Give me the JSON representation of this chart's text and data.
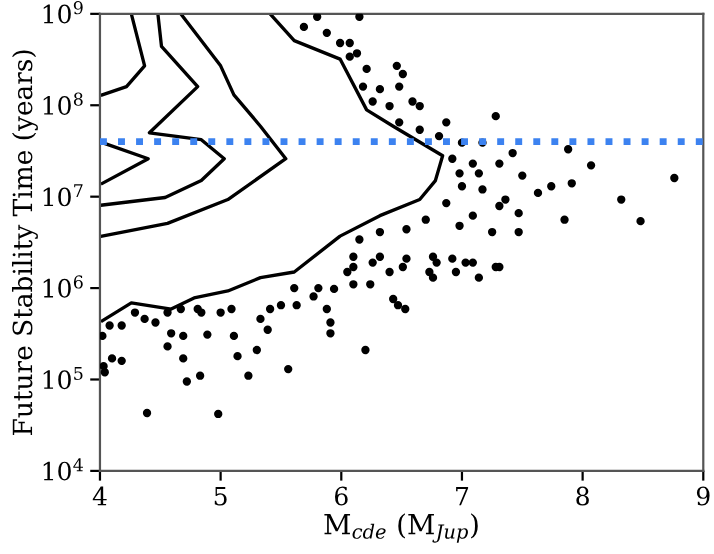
{
  "chart_data": {
    "type": "scatter",
    "xlabel": "M$_{cde}$ (M$_{Jup}$)",
    "ylabel": "Future Stability Time (years)",
    "log": "y",
    "grid": false,
    "xlim": [
      4,
      9
    ],
    "xticks": [
      4,
      5,
      6,
      7,
      8,
      9
    ],
    "ylim": [
      10000,
      1000000000
    ],
    "yticks": [
      {
        "value": 10000,
        "label": "10$^{4}$"
      },
      {
        "value": 100000,
        "label": "10$^{5}$"
      },
      {
        "value": 1000000,
        "label": "10$^{6}$"
      },
      {
        "value": 10000000,
        "label": "10$^{7}$"
      },
      {
        "value": 100000000,
        "label": "10$^{8}$"
      },
      {
        "value": 1000000000,
        "label": "10$^{9}$"
      }
    ],
    "ref_lines": [
      {
        "axis": "y",
        "value": 40000000,
        "color": "#3c82f0",
        "line_style": "dotted"
      }
    ],
    "series": [
      {
        "type": "line",
        "color": "#000000",
        "line_style": "solid",
        "x": [
          4.26,
          4.37,
          4.22,
          4.02
        ],
        "values": [
          1000000000.0,
          270000000.0,
          160000000.0,
          130000000.0
        ]
      },
      {
        "type": "line",
        "color": "#000000",
        "line_style": "solid",
        "x": [
          4.02,
          4.4,
          4.02
        ],
        "values": [
          39000000.0,
          26000000.0,
          14000000.0
        ]
      },
      {
        "type": "line",
        "color": "#000000",
        "line_style": "solid",
        "x": [
          4.48,
          4.51,
          4.81,
          4.41,
          4.84,
          5.03,
          4.84,
          4.54,
          4.02
        ],
        "values": [
          1000000000.0,
          440000000.0,
          160000000.0,
          50000000.0,
          42000000.0,
          26000000.0,
          15000000.0,
          9800000.0,
          8100000.0
        ]
      },
      {
        "type": "line",
        "color": "#000000",
        "line_style": "solid",
        "x": [
          4.67,
          5.0,
          5.11,
          5.33,
          5.54,
          5.06,
          4.56,
          4.02
        ],
        "values": [
          1000000000.0,
          270000000.0,
          130000000.0,
          59000000.0,
          26000000.0,
          9300000.0,
          5100000.0,
          3700000.0
        ]
      },
      {
        "type": "line",
        "color": "#000000",
        "line_style": "solid",
        "x": [
          5.41,
          5.61,
          5.99,
          6.21,
          6.43,
          6.84,
          6.78,
          6.65,
          6.32,
          5.99,
          5.61,
          5.33,
          5.06,
          4.78,
          4.59,
          4.26,
          4.02
        ],
        "values": [
          1000000000.0,
          510000000.0,
          320000000.0,
          89000000.0,
          59000000.0,
          28000000.0,
          15000000.0,
          9300000.0,
          6200000.0,
          3700000.0,
          1500000.0,
          1300000.0,
          930000.0,
          780000.0,
          590000.0,
          690000.0,
          440000.0
        ]
      },
      {
        "color": "#000000",
        "marker": "circle",
        "x": [
          6.15,
          6.07,
          6.13,
          6.21,
          6.46,
          6.51,
          6.18,
          6.32,
          6.48,
          6.26,
          6.4,
          6.59,
          6.65,
          6.48,
          6.65,
          6.87,
          7.28,
          6.81,
          7.0,
          7.17,
          7.88,
          8.07,
          8.76,
          6.92,
          7.09,
          7.31,
          7.42,
          6.98,
          7.14,
          7.5,
          7.0,
          7.17,
          7.36,
          7.63,
          7.74,
          7.91,
          8.32,
          8.48,
          7.85,
          6.87,
          7.09,
          7.31,
          7.47,
          6.98,
          7.25,
          7.47,
          6.7,
          6.54,
          6.32,
          6.15,
          6.1,
          6.32,
          6.54,
          6.76,
          6.92,
          7.03,
          7.31,
          6.4,
          7.14,
          5.69,
          5.88,
          5.99,
          6.07,
          5.8,
          6.1,
          6.1,
          6.24,
          6.26,
          6.51,
          6.43,
          6.47,
          6.53,
          6.73,
          6.76,
          6.79,
          6.95,
          7.28,
          6.2,
          7.09,
          4.02,
          4.03,
          4.04,
          4.08,
          4.1,
          4.18,
          4.18,
          4.29,
          4.37,
          4.46,
          4.39,
          4.56,
          4.56,
          4.59,
          4.67,
          4.69,
          4.69,
          4.72,
          4.81,
          4.84,
          4.83,
          4.98,
          4.89,
          5.0,
          5.09,
          5.11,
          5.14,
          5.23,
          5.3,
          5.33,
          5.41,
          5.5,
          5.56,
          5.61,
          5.63,
          5.77,
          5.81,
          5.88,
          5.91,
          5.91,
          5.94,
          6.05,
          5.39
        ],
        "values": [
          930000000.0,
          480000000.0,
          370000000.0,
          250000000.0,
          270000000.0,
          220000000.0,
          160000000.0,
          150000000.0,
          160000000.0,
          110000000.0,
          98000000.0,
          110000000.0,
          98000000.0,
          65000000.0,
          54000000.0,
          65000000.0,
          76000000.0,
          46000000.0,
          39000000.0,
          39000000.0,
          33000000.0,
          22000000.0,
          16000000.0,
          26000000.0,
          23000000.0,
          23000000.0,
          30000000.0,
          18000000.0,
          18000000.0,
          17000000.0,
          13000000.0,
          12000000.0,
          9300000.0,
          11000000.0,
          13000000.0,
          14000000.0,
          9300000.0,
          5400000.0,
          5600000.0,
          8500000.0,
          6200000.0,
          7900000.0,
          6600000.0,
          4800000.0,
          4100000.0,
          4100000.0,
          5600000.0,
          4400000.0,
          4100000.0,
          3400000.0,
          2200000.0,
          2200000.0,
          2100000.0,
          2200000.0,
          2100000.0,
          1900000.0,
          1700000.0,
          1500000.0,
          1300000.0,
          720000000.0,
          620000000.0,
          480000000.0,
          340000000.0,
          930000000.0,
          1700000.0,
          1100000.0,
          1100000.0,
          1900000.0,
          1700000.0,
          760000.0,
          650000.0,
          590000.0,
          1500000.0,
          1300000.0,
          1900000.0,
          1500000.0,
          1700000.0,
          210000.0,
          1900000.0,
          300000.0,
          140000.0,
          120000.0,
          390000.0,
          170000.0,
          390000.0,
          160000.0,
          540000.0,
          460000.0,
          420000.0,
          43000.0,
          540000.0,
          230000.0,
          320000.0,
          590000.0,
          300000.0,
          170000.0,
          95000.0,
          590000.0,
          540000.0,
          110000.0,
          42000.0,
          310000.0,
          540000.0,
          590000.0,
          300000.0,
          180000.0,
          110000.0,
          210000.0,
          460000.0,
          590000.0,
          650000.0,
          130000.0,
          1000000.0,
          650000.0,
          810000.0,
          1000000.0,
          590000.0,
          420000.0,
          320000.0,
          980000.0,
          1500000.0,
          350000.0
        ]
      }
    ]
  }
}
